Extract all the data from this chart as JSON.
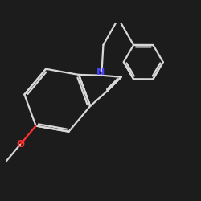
{
  "bg_color": "#1c1c1c",
  "bond_color": "#d8d8d8",
  "N_color": "#4444ff",
  "O_color": "#ff3030",
  "bond_width": 1.6,
  "font_size_atom": 8.5
}
